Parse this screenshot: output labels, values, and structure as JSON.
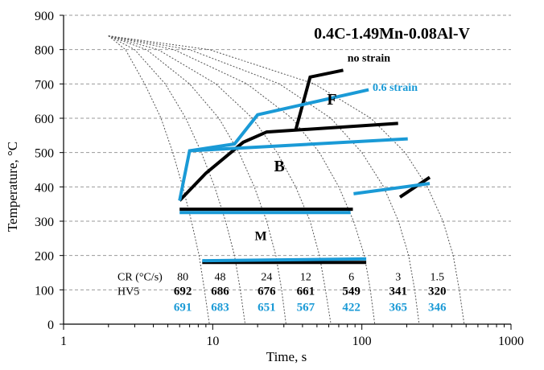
{
  "chart_data": {
    "type": "line",
    "title": "0.4C-1.49Mn-0.08Al-V",
    "xlabel": "Time, s",
    "ylabel": "Temperature, °C",
    "x_scale": "log",
    "xlim": [
      1,
      1000
    ],
    "ylim": [
      0,
      900
    ],
    "x_ticks": [
      1,
      10,
      100,
      1000
    ],
    "x_tick_labels": [
      "1",
      "10",
      "100",
      "1000"
    ],
    "y_ticks": [
      0,
      100,
      200,
      300,
      400,
      500,
      600,
      700,
      800,
      900
    ],
    "y_tick_labels": [
      "0",
      "100",
      "200",
      "300",
      "400",
      "500",
      "600",
      "700",
      "800",
      "900"
    ],
    "gridlines": "horizontal-dashed",
    "colors": {
      "no_strain": "#000000",
      "strain": "#1a9ad6",
      "cooling": "#555555"
    },
    "cooling_curves": [
      {
        "cr": 80,
        "points": [
          [
            2,
            840
          ],
          [
            2.6,
            800
          ],
          [
            3.5,
            700
          ],
          [
            4.5,
            600
          ],
          [
            5.4,
            500
          ],
          [
            6.3,
            400
          ],
          [
            7.2,
            300
          ],
          [
            8.1,
            200
          ],
          [
            8.8,
            100
          ],
          [
            9.5,
            0
          ]
        ]
      },
      {
        "cr": 48,
        "points": [
          [
            2,
            840
          ],
          [
            3,
            800
          ],
          [
            4.8,
            700
          ],
          [
            6.6,
            600
          ],
          [
            8.4,
            500
          ],
          [
            10.3,
            400
          ],
          [
            12.2,
            300
          ],
          [
            14,
            200
          ],
          [
            15.3,
            100
          ],
          [
            16.5,
            0
          ]
        ]
      },
      {
        "cr": 24,
        "points": [
          [
            2,
            840
          ],
          [
            3.6,
            800
          ],
          [
            7,
            700
          ],
          [
            11,
            600
          ],
          [
            15,
            500
          ],
          [
            19,
            400
          ],
          [
            23,
            300
          ],
          [
            26.5,
            200
          ],
          [
            29,
            100
          ],
          [
            31,
            0
          ]
        ]
      },
      {
        "cr": 12,
        "points": [
          [
            2,
            840
          ],
          [
            4.3,
            800
          ],
          [
            10.5,
            700
          ],
          [
            18.5,
            600
          ],
          [
            27,
            500
          ],
          [
            36,
            400
          ],
          [
            45,
            300
          ],
          [
            52,
            200
          ],
          [
            57,
            100
          ],
          [
            62,
            0
          ]
        ]
      },
      {
        "cr": 6,
        "points": [
          [
            2,
            840
          ],
          [
            5.5,
            800
          ],
          [
            17,
            700
          ],
          [
            34,
            600
          ],
          [
            52,
            500
          ],
          [
            70,
            400
          ],
          [
            88,
            300
          ],
          [
            104,
            200
          ],
          [
            114,
            100
          ],
          [
            122,
            0
          ]
        ]
      },
      {
        "cr": 3,
        "points": [
          [
            2,
            840
          ],
          [
            7,
            800
          ],
          [
            28,
            700
          ],
          [
            62,
            600
          ],
          [
            100,
            500
          ],
          [
            140,
            400
          ],
          [
            176,
            300
          ],
          [
            206,
            200
          ],
          [
            226,
            100
          ],
          [
            242,
            0
          ]
        ]
      },
      {
        "cr": 1.5,
        "points": [
          [
            2,
            840
          ],
          [
            9.5,
            800
          ],
          [
            48,
            700
          ],
          [
            115,
            600
          ],
          [
            195,
            500
          ],
          [
            275,
            400
          ],
          [
            350,
            300
          ],
          [
            410,
            200
          ],
          [
            450,
            100
          ],
          [
            485,
            0
          ]
        ]
      }
    ],
    "series": [
      {
        "name": "no strain",
        "color": "#000000",
        "segments": [
          [
            [
              6,
              360
            ],
            [
              9,
              440
            ],
            [
              16,
              530
            ],
            [
              23,
              560
            ],
            [
              175,
              585
            ]
          ],
          [
            [
              6,
              335
            ],
            [
              87,
              335
            ]
          ],
          [
            [
              8.5,
              180
            ],
            [
              107,
              180
            ]
          ],
          [
            [
              36,
              565
            ],
            [
              45,
              720
            ],
            [
              75,
              740
            ]
          ],
          [
            [
              180,
              370
            ],
            [
              285,
              428
            ]
          ]
        ]
      },
      {
        "name": "0.6 strain",
        "color": "#1a9ad6",
        "segments": [
          [
            [
              6,
              360
            ],
            [
              7,
              505
            ],
            [
              203,
              540
            ]
          ],
          [
            [
              7,
              505
            ],
            [
              14,
              525
            ],
            [
              20,
              610
            ],
            [
              111,
              683
            ]
          ],
          [
            [
              6,
              325
            ],
            [
              84,
              325
            ]
          ],
          [
            [
              8.5,
              185
            ],
            [
              107,
              190
            ]
          ],
          [
            [
              88,
              380
            ],
            [
              285,
              410
            ]
          ]
        ]
      }
    ],
    "series_labels": [
      {
        "text": "no strain",
        "x": 80,
        "y": 765,
        "color": "#000000"
      },
      {
        "text": "0.6 strain",
        "x": 118,
        "y": 680,
        "color": "#1a9ad6"
      }
    ],
    "phase_labels": [
      {
        "text": "F",
        "x": 63,
        "y": 640,
        "size": 20
      },
      {
        "text": "B",
        "x": 28,
        "y": 445,
        "size": 20
      },
      {
        "text": "M",
        "x": 21,
        "y": 245,
        "size": 16
      }
    ],
    "table": {
      "cr_header": "CR (°C/s)",
      "hv_header": "HV5",
      "cr_values": [
        "80",
        "48",
        "24",
        "12",
        "6",
        "3",
        "1.5"
      ],
      "hv_no_strain": [
        "692",
        "686",
        "676",
        "661",
        "549",
        "341",
        "320"
      ],
      "hv_strain": [
        "691",
        "683",
        "651",
        "567",
        "422",
        "365",
        "346"
      ],
      "value_x": [
        6.3,
        11.2,
        23,
        42,
        85,
        175,
        320
      ],
      "header_x": 2.3,
      "cr_y": 140,
      "hv_no_strain_y": 97,
      "hv_strain_y": 50
    }
  }
}
